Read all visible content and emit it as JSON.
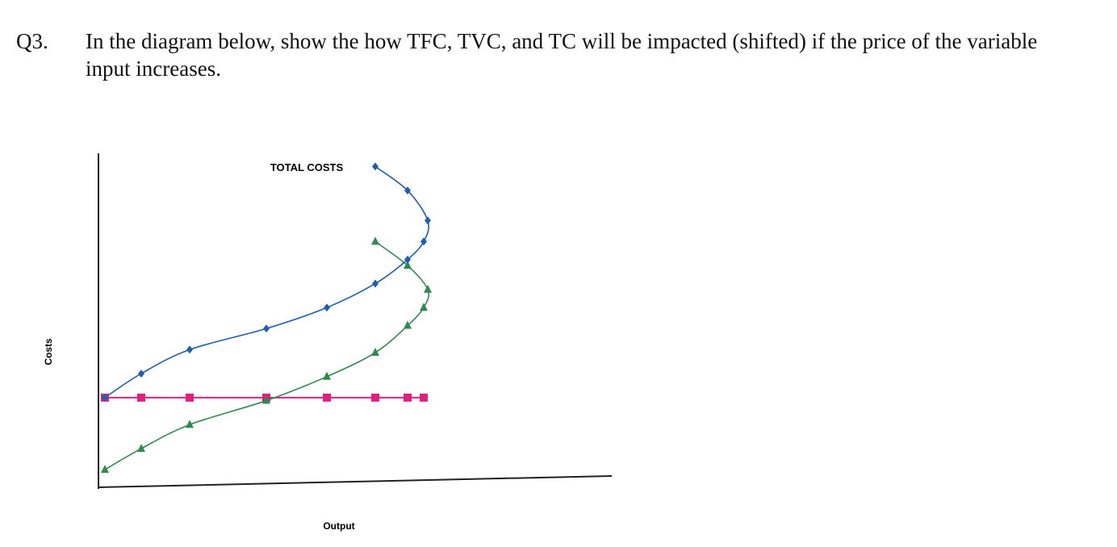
{
  "question": {
    "number": "Q3.",
    "text": "In the diagram below, show the how TFC, TVC, and TC will be impacted (shifted) if the price of the variable input increases."
  },
  "chart_data": {
    "type": "line",
    "title": "TOTAL COSTS",
    "xlabel": "Output",
    "ylabel": "Costs",
    "xlim": [
      0,
      100
    ],
    "ylim": [
      0,
      100
    ],
    "grid": false,
    "legend": "none",
    "series": [
      {
        "key": "tfc",
        "color": "#e0207f",
        "marker": "square",
        "points": [
          [
            0,
            28
          ],
          [
            9,
            28
          ],
          [
            21,
            28
          ],
          [
            40,
            28
          ],
          [
            55,
            28
          ],
          [
            67,
            28
          ],
          [
            75,
            28
          ],
          [
            79,
            28
          ]
        ]
      },
      {
        "key": "tvc",
        "color": "#2e8b4f",
        "marker": "triangle",
        "points": [
          [
            0,
            4
          ],
          [
            9,
            11
          ],
          [
            21,
            19
          ],
          [
            40,
            27
          ],
          [
            55,
            35
          ],
          [
            67,
            43
          ],
          [
            75,
            52
          ],
          [
            79,
            58
          ],
          [
            80,
            64
          ],
          [
            75,
            72
          ],
          [
            67,
            80
          ]
        ]
      },
      {
        "key": "tc",
        "color": "#1f5fb0",
        "marker": "diamond",
        "points": [
          [
            0,
            28
          ],
          [
            9,
            36
          ],
          [
            21,
            44
          ],
          [
            40,
            51
          ],
          [
            55,
            58
          ],
          [
            67,
            66
          ],
          [
            75,
            74
          ],
          [
            79,
            80
          ],
          [
            80,
            87
          ],
          [
            75,
            97
          ],
          [
            67,
            105
          ]
        ]
      }
    ]
  }
}
